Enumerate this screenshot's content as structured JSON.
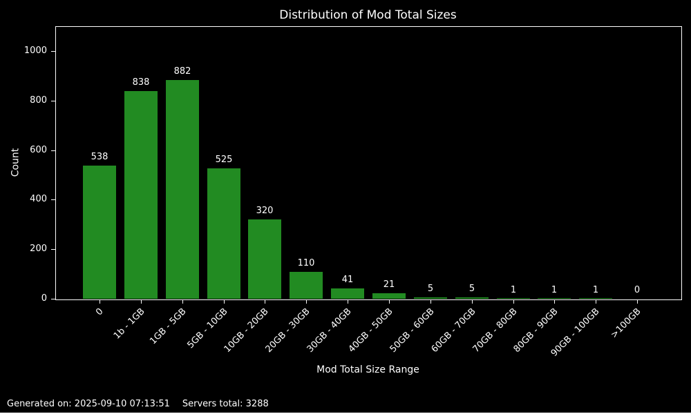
{
  "chart_data": {
    "type": "bar",
    "title": "Distribution of Mod Total Sizes",
    "xlabel": "Mod Total Size Range",
    "ylabel": "Count",
    "categories": [
      "0",
      "1b - 1GB",
      "1GB - 5GB",
      "5GB - 10GB",
      "10GB - 20GB",
      "20GB - 30GB",
      "30GB - 40GB",
      "40GB - 50GB",
      "50GB - 60GB",
      "60GB - 70GB",
      "70GB - 80GB",
      "80GB - 90GB",
      "90GB - 100GB",
      ">100GB"
    ],
    "values": [
      538,
      838,
      882,
      525,
      320,
      110,
      41,
      21,
      5,
      5,
      1,
      1,
      1,
      0
    ],
    "value_labels_shown": true,
    "yticks": [
      0,
      200,
      400,
      600,
      800,
      1000
    ],
    "ylim": [
      0,
      1100
    ],
    "grid": false,
    "legend": "none",
    "bar_color": "#228B22",
    "background_color": "#000000",
    "text_color": "#ffffff",
    "xtick_rotation_deg": 45
  },
  "footer": {
    "generated": "Generated on: 2025-09-10 07:13:51",
    "servers_total": "Servers total: 3288"
  }
}
